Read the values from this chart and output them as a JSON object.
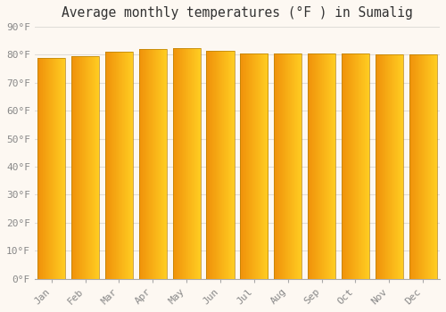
{
  "title": "Average monthly temperatures (°F ) in Sumalig",
  "months": [
    "Jan",
    "Feb",
    "Mar",
    "Apr",
    "May",
    "Jun",
    "Jul",
    "Aug",
    "Sep",
    "Oct",
    "Nov",
    "Dec"
  ],
  "values": [
    79,
    79.5,
    81,
    82,
    82.5,
    81.5,
    80.5,
    80.5,
    80.5,
    80.5,
    80,
    80
  ],
  "yticks": [
    0,
    10,
    20,
    30,
    40,
    50,
    60,
    70,
    80,
    90
  ],
  "ytick_labels": [
    "0°F",
    "10°F",
    "20°F",
    "30°F",
    "40°F",
    "50°F",
    "60°F",
    "70°F",
    "80°F",
    "90°F"
  ],
  "ylim": [
    0,
    90
  ],
  "bar_color_left": "#F0920A",
  "bar_color_right": "#FFCC22",
  "background_color": "#fdf8f2",
  "grid_color": "#e0ddd8",
  "title_fontsize": 10.5,
  "tick_fontsize": 8,
  "bar_edge_color": "#B8820A",
  "bar_edge_width": 0.5
}
